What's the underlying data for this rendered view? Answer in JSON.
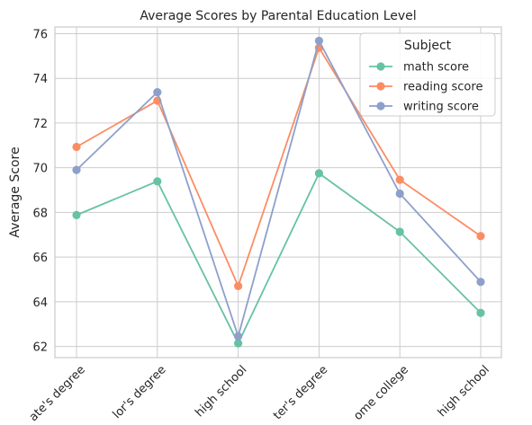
{
  "chart_data": {
    "type": "line",
    "title": "Average Scores by Parental Education Level",
    "xlabel": "",
    "ylabel": "Average Score",
    "categories": [
      "associate's degree",
      "bachelor's degree",
      "high school",
      "master's degree",
      "some college",
      "some high school"
    ],
    "category_labels_visible": [
      "ate's degree",
      "lor's degree",
      "high school",
      "ter's degree",
      "ome college",
      "high school"
    ],
    "series": [
      {
        "name": "math score",
        "color": "#66c2a5",
        "values": [
          67.88,
          69.39,
          62.14,
          69.75,
          67.13,
          63.5
        ]
      },
      {
        "name": "reading score",
        "color": "#fc8d62",
        "values": [
          70.93,
          73.0,
          64.7,
          75.37,
          69.46,
          66.94
        ]
      },
      {
        "name": "writing score",
        "color": "#8da0cb",
        "values": [
          69.9,
          73.38,
          62.45,
          75.68,
          68.84,
          64.89
        ]
      }
    ],
    "ylim": [
      61.5,
      76.3
    ],
    "yticks": [
      62,
      64,
      66,
      68,
      70,
      72,
      74,
      76
    ],
    "grid": true,
    "legend": {
      "title": "Subject",
      "placement": "top-right"
    },
    "marker": "circle"
  }
}
